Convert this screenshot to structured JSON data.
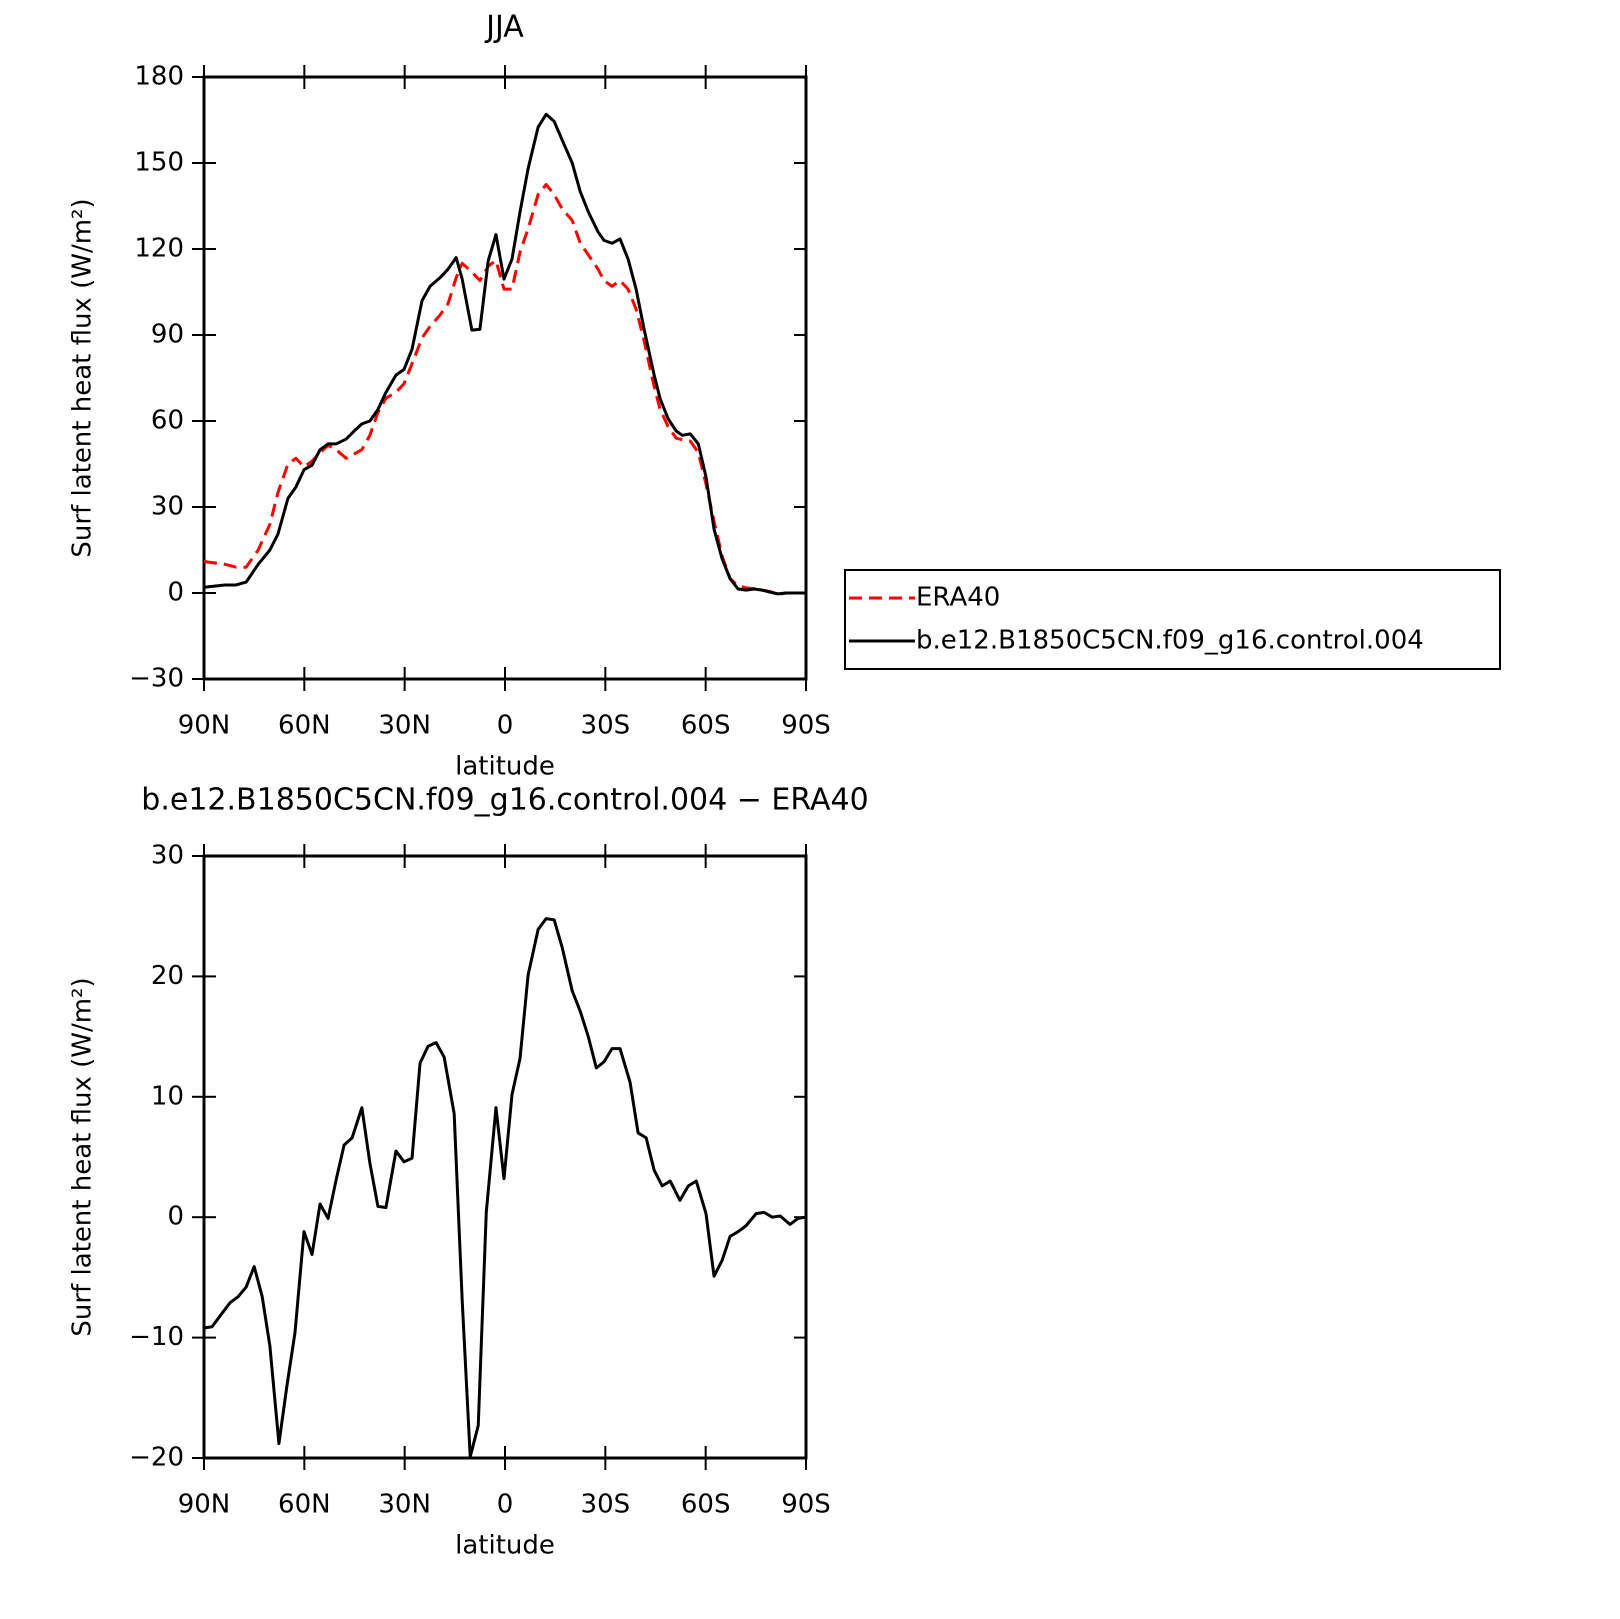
{
  "chart_data": [
    {
      "type": "line",
      "title": "JJA",
      "xlabel": "latitude",
      "ylabel": "Surf latent heat flux (W/m²)",
      "xlim": [
        90,
        -90
      ],
      "xticks": [
        {
          "value": 90,
          "label": "90N"
        },
        {
          "value": 60,
          "label": "60N"
        },
        {
          "value": 30,
          "label": "30N"
        },
        0,
        {
          "value": -30,
          "label": "30S"
        },
        {
          "value": -60,
          "label": "60S"
        },
        {
          "value": -90,
          "label": "90S"
        }
      ],
      "ylim": [
        -30,
        180
      ],
      "yticks": [
        {
          "value": -30,
          "label": "−30"
        },
        0,
        30,
        60,
        90,
        120,
        150,
        180
      ],
      "legend": "right",
      "x": [
        90,
        83.7,
        80.4,
        77.4,
        73.8,
        70.3,
        67.9,
        64.9,
        62.5,
        60.1,
        57.7,
        55.3,
        52.9,
        50.5,
        47.5,
        45.1,
        42.8,
        40.4,
        38,
        35.6,
        32.6,
        30.2,
        27.8,
        24.8,
        22.4,
        19.4,
        17,
        14.6,
        12.8,
        9.9,
        7.5,
        5,
        2.7,
        0.3,
        -2.1,
        -4.5,
        -6.9,
        -9.9,
        -12.3,
        -14.7,
        -17.1,
        -20.1,
        -22.5,
        -24.9,
        -27.8,
        -29.6,
        -32,
        -34.4,
        -36.8,
        -39.2,
        -41.6,
        -44.6,
        -46.4,
        -48.8,
        -51.2,
        -53,
        -55.4,
        -57.8,
        -60.1,
        -62.5,
        -64.9,
        -67.3,
        -69.7,
        -72.1,
        -74.5,
        -76.9,
        -79.3,
        -81.6,
        -84,
        -87,
        -90
      ],
      "series": [
        {
          "name": "ERA40",
          "color": "#ff0000",
          "dashed": true,
          "values": [
            11,
            10,
            9,
            9,
            15,
            24,
            35,
            45,
            47,
            44,
            46,
            49,
            51.5,
            50,
            47,
            48.5,
            50,
            55,
            63,
            68,
            70,
            73,
            80,
            89,
            93,
            97,
            101,
            110,
            115,
            112,
            109,
            114,
            116,
            106,
            106,
            119,
            127,
            139,
            142.5,
            139,
            134,
            130,
            122,
            118,
            113,
            109,
            107,
            109,
            106,
            99,
            88,
            72,
            64,
            58,
            54,
            53.5,
            53,
            49,
            38,
            25,
            13,
            5,
            2.5,
            1.8,
            1.5,
            1,
            0.5,
            -0.5,
            0,
            0,
            0
          ]
        },
        {
          "name": "b.e12.B1850C5CN.f09_g16.control.004",
          "color": "#000000",
          "dashed": false,
          "values": [
            2,
            2.8,
            2.8,
            3.8,
            10,
            15,
            20.5,
            33,
            37,
            43,
            44.6,
            50,
            52,
            52,
            53.7,
            56.5,
            59,
            60,
            64,
            70,
            76,
            78,
            85,
            102,
            107,
            110,
            113,
            117,
            109.5,
            91.7,
            92,
            116,
            125,
            109.5,
            116.5,
            133,
            148,
            162.5,
            167,
            164.5,
            158,
            150,
            140,
            133,
            126,
            123,
            122,
            123.5,
            116.5,
            106,
            92,
            76,
            67.7,
            60.7,
            56.5,
            55,
            55.5,
            52,
            40.5,
            22.3,
            12,
            5,
            1.4,
            1,
            1.4,
            1,
            0.3,
            -0.3,
            0,
            0,
            0
          ]
        }
      ]
    },
    {
      "type": "line",
      "title": "b.e12.B1850C5CN.f09_g16.control.004 − ERA40",
      "xlabel": "latitude",
      "ylabel": "Surf latent heat flux (W/m²)",
      "xlim": [
        90,
        -90
      ],
      "xticks": [
        {
          "value": 90,
          "label": "90N"
        },
        {
          "value": 60,
          "label": "60N"
        },
        {
          "value": 30,
          "label": "30N"
        },
        0,
        {
          "value": -30,
          "label": "30S"
        },
        {
          "value": -60,
          "label": "60S"
        },
        {
          "value": -90,
          "label": "90S"
        }
      ],
      "ylim": [
        -20,
        30
      ],
      "yticks": [
        {
          "value": -20,
          "label": "−20"
        },
        {
          "value": -10,
          "label": "−10"
        },
        0,
        10,
        20,
        30
      ],
      "x": [
        90,
        87.6,
        85.2,
        82.2,
        79.8,
        77.4,
        75,
        72.6,
        70.3,
        67.6,
        65.2,
        62.8,
        60.1,
        57.7,
        55.3,
        52.9,
        50.5,
        48.1,
        45.7,
        42.8,
        40.4,
        38,
        35.6,
        32.6,
        30.2,
        27.8,
        25.4,
        23,
        20.6,
        18.2,
        15.2,
        12.8,
        10.4,
        8,
        5.6,
        2.7,
        0.3,
        -2.1,
        -4.5,
        -6.9,
        -9.9,
        -12.3,
        -14.7,
        -17.1,
        -20.1,
        -22.5,
        -24.9,
        -27.3,
        -29.6,
        -32,
        -34.4,
        -37.4,
        -39.8,
        -42.2,
        -44.6,
        -47,
        -49.4,
        -52.3,
        -54.8,
        -57.2,
        -60.1,
        -62.5,
        -64.9,
        -67.3,
        -69.7,
        -72.1,
        -75.1,
        -77.5,
        -79.9,
        -82.3,
        -85.2,
        -87.6,
        -90
      ],
      "series": [
        {
          "color": "#000000",
          "dashed": false,
          "values": [
            -9.2,
            -9.1,
            -8.2,
            -7.1,
            -6.6,
            -5.8,
            -4.1,
            -6.6,
            -10.7,
            -18.8,
            -14,
            -9.6,
            -1.2,
            -3.1,
            1.1,
            -0.1,
            3.1,
            6,
            6.6,
            9.1,
            4.5,
            0.9,
            0.8,
            5.5,
            4.6,
            4.9,
            12.8,
            14.2,
            14.5,
            13.3,
            8.6,
            -6.9,
            -19.9,
            -17.3,
            0.4,
            9.1,
            3.2,
            10.2,
            13.2,
            20.1,
            23.9,
            24.8,
            24.7,
            22.4,
            18.8,
            17.1,
            15,
            12.4,
            12.9,
            14,
            14,
            11.2,
            7,
            6.6,
            3.9,
            2.6,
            3,
            1.4,
            2.6,
            3,
            0.3,
            -4.9,
            -3.6,
            -1.6,
            -1.2,
            -0.7,
            0.3,
            0.4,
            0,
            0.1,
            -0.6,
            -0.1,
            0
          ]
        }
      ]
    }
  ]
}
